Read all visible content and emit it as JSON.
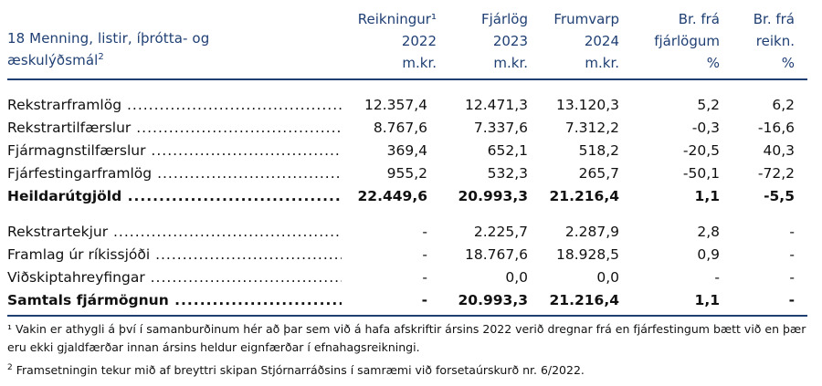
{
  "header": {
    "title": "18 Menning, listir, íþrótta- og",
    "title_line2": "æskulýðsmál",
    "title_sup": "2",
    "columns": [
      {
        "line1": "Reikningur¹",
        "line2": "2022",
        "line3": "m.kr."
      },
      {
        "line1": "Fjárlög",
        "line2": "2023",
        "line3": "m.kr."
      },
      {
        "line1": "Frumvarp",
        "line2": "2024",
        "line3": "m.kr."
      },
      {
        "line1": "Br. frá",
        "line2": "fjárlögum",
        "line3": "%"
      },
      {
        "line1": "Br. frá",
        "line2": "reikn.",
        "line3": "%"
      }
    ]
  },
  "rows": [
    {
      "label": "Rekstrarframlög",
      "values": [
        "12.357,4",
        "12.471,3",
        "13.120,3",
        "5,2",
        "6,2"
      ]
    },
    {
      "label": "Rekstrartilfærslur",
      "values": [
        "8.767,6",
        "7.337,6",
        "7.312,2",
        "-0,3",
        "-16,6"
      ]
    },
    {
      "label": "Fjármagnstilfærslur",
      "values": [
        "369,4",
        "652,1",
        "518,2",
        "-20,5",
        "40,3"
      ]
    },
    {
      "label": "Fjárfestingarframlög",
      "values": [
        "955,2",
        "532,3",
        "265,7",
        "-50,1",
        "-72,2"
      ]
    },
    {
      "label": "Heildarútgjöld",
      "values": [
        "22.449,6",
        "20.993,3",
        "21.216,4",
        "1,1",
        "-5,5"
      ]
    },
    {
      "label": "Rekstrartekjur",
      "values": [
        "-",
        "2.225,7",
        "2.287,9",
        "2,8",
        "-"
      ]
    },
    {
      "label": "Framlag úr ríkissjóði",
      "values": [
        "-",
        "18.767,6",
        "18.928,5",
        "0,9",
        "-"
      ]
    },
    {
      "label": "Viðskiptahreyfingar",
      "values": [
        "-",
        "0,0",
        "0,0",
        "-",
        "-"
      ]
    },
    {
      "label": "Samtals fjármögnun",
      "values": [
        "-",
        "20.993,3",
        "21.216,4",
        "1,1",
        "-"
      ]
    }
  ],
  "footnotes": {
    "note1_mark": "¹",
    "note1_line1": "Vakin er athygli á því í samanburðinum hér að þar sem við á hafa afskriftir ársins 2022 verið dregnar frá en fjárfestingum bætt við en þær",
    "note1_line2": "eru ekki gjaldfærðar innan ársins heldur eignfærðar í efnahagsreikningi.",
    "note2_mark": "2",
    "note2_text": "Framsetningin tekur mið af breyttri skipan Stjórnarráðsins í samræmi við forsetaúrskurð nr. 6/2022."
  }
}
